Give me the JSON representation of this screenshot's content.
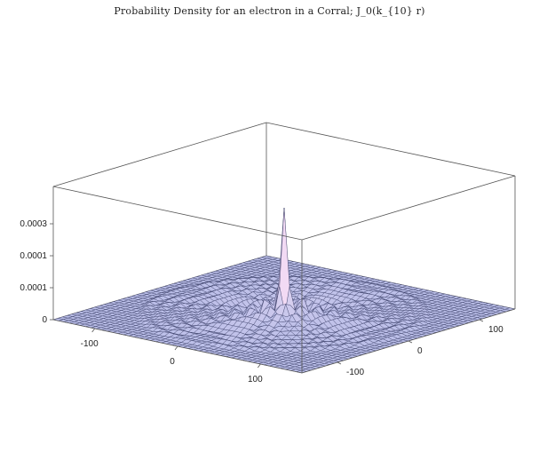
{
  "chart_data": {
    "type": "surface3d",
    "title": "Probability Density for an electron in a Corral; J_0(k_{10} r)",
    "function": "J0(k10 r)^2",
    "z_ticks": [
      "0",
      "0.0001",
      "0.0001",
      "0.0003"
    ],
    "x_ticks": [
      "-100",
      "0",
      "100"
    ],
    "y_ticks": [
      "-100",
      "0",
      "100"
    ],
    "x_range": [
      -150,
      150
    ],
    "y_range": [
      -150,
      150
    ],
    "z_range": [
      0,
      0.0004
    ],
    "peak_value": 0.0004,
    "corral_radius": 135,
    "grid": true,
    "surface_color": "#b9c0ea",
    "mesh_color": "#30355e",
    "box_color": "#555555"
  }
}
